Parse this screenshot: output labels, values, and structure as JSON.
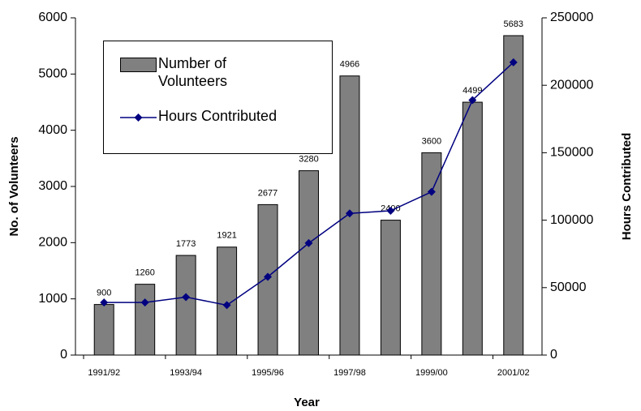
{
  "chart_data": {
    "type": "bar_line",
    "x_label": "Year",
    "y_label": "No. of Volunteers",
    "y2_label": "Hours Contributed",
    "categories": [
      "1991/92",
      null,
      "1993/94",
      null,
      "1995/96",
      null,
      "1997/98",
      null,
      "1999/00",
      null,
      "2001/02"
    ],
    "series": [
      {
        "name": "Number of Volunteers",
        "type": "bar",
        "color": "#808080",
        "values": [
          900,
          1260,
          1773,
          1921,
          2677,
          3280,
          4966,
          2400,
          3600,
          4499,
          5683
        ]
      },
      {
        "name": "Hours Contributed",
        "type": "line",
        "axis": "y2",
        "color": "#000080",
        "values": [
          39000,
          39000,
          43000,
          37000,
          58000,
          83000,
          105000,
          107000,
          121000,
          189000,
          217000
        ]
      }
    ],
    "ylim": [
      0,
      6000
    ],
    "yticks": [
      0,
      1000,
      2000,
      3000,
      4000,
      5000,
      6000
    ],
    "y2lim": [
      0,
      250000
    ],
    "y2ticks": [
      0,
      50000,
      100000,
      150000,
      200000,
      250000
    ],
    "legend": "upper left"
  }
}
